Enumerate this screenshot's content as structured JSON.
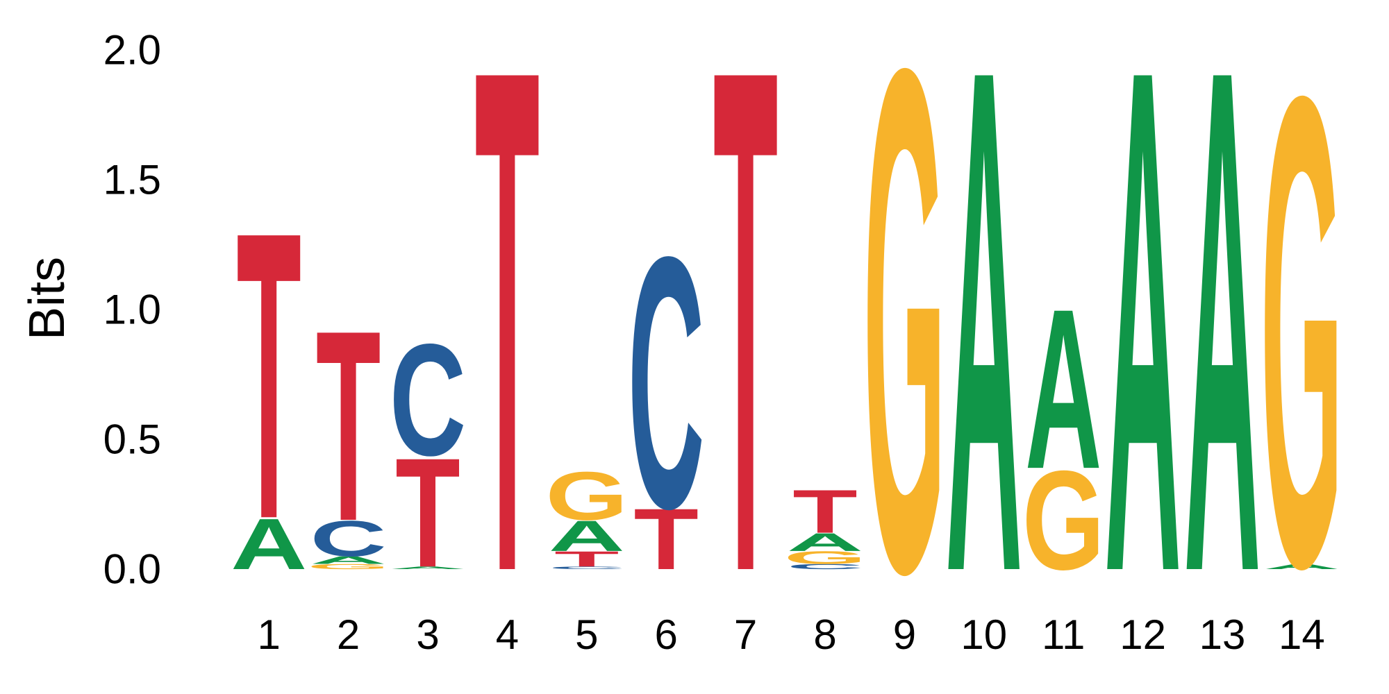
{
  "colors": {
    "A": "#109648",
    "C": "#255C99",
    "G": "#F7B32B",
    "T": "#D62839"
  },
  "chart_data": {
    "type": "sequence-logo",
    "title": "",
    "xlabel": "",
    "ylabel": "Bits",
    "ylim": [
      0,
      2
    ],
    "y_ticks": [
      "0.0",
      "0.5",
      "1.0",
      "1.5",
      "2.0"
    ],
    "y_tick_values": [
      0,
      0.5,
      1.0,
      1.5,
      2.0
    ],
    "grid": false,
    "legend": "none",
    "categories": [
      "1",
      "2",
      "3",
      "4",
      "5",
      "6",
      "7",
      "8",
      "9",
      "10",
      "11",
      "12",
      "13",
      "14"
    ],
    "positions": [
      {
        "position": "1",
        "stack": [
          {
            "base": "A",
            "bits": 0.2
          },
          {
            "base": "T",
            "bits": 1.13
          }
        ]
      },
      {
        "position": "2",
        "stack": [
          {
            "base": "G",
            "bits": 0.02
          },
          {
            "base": "A",
            "bits": 0.03
          },
          {
            "base": "C",
            "bits": 0.14
          },
          {
            "base": "T",
            "bits": 0.75
          }
        ]
      },
      {
        "position": "3",
        "stack": [
          {
            "base": "A",
            "bits": 0.01
          },
          {
            "base": "T",
            "bits": 0.43
          },
          {
            "base": "C",
            "bits": 0.44
          }
        ]
      },
      {
        "position": "4",
        "stack": [
          {
            "base": "T",
            "bits": 1.98
          }
        ]
      },
      {
        "position": "5",
        "stack": [
          {
            "base": "C",
            "bits": 0.01
          },
          {
            "base": "T",
            "bits": 0.06
          },
          {
            "base": "A",
            "bits": 0.12
          },
          {
            "base": "G",
            "bits": 0.19
          }
        ]
      },
      {
        "position": "6",
        "stack": [
          {
            "base": "T",
            "bits": 0.24
          },
          {
            "base": "C",
            "bits": 0.99
          }
        ]
      },
      {
        "position": "7",
        "stack": [
          {
            "base": "T",
            "bits": 1.98
          }
        ]
      },
      {
        "position": "8",
        "stack": [
          {
            "base": "C",
            "bits": 0.02
          },
          {
            "base": "G",
            "bits": 0.05
          },
          {
            "base": "A",
            "bits": 0.07
          },
          {
            "base": "T",
            "bits": 0.17
          }
        ]
      },
      {
        "position": "9",
        "stack": [
          {
            "base": "G",
            "bits": 1.98
          }
        ]
      },
      {
        "position": "10",
        "stack": [
          {
            "base": "A",
            "bits": 1.98
          }
        ]
      },
      {
        "position": "11",
        "stack": [
          {
            "base": "G",
            "bits": 0.39
          },
          {
            "base": "A",
            "bits": 0.63
          }
        ]
      },
      {
        "position": "12",
        "stack": [
          {
            "base": "A",
            "bits": 1.98
          }
        ]
      },
      {
        "position": "13",
        "stack": [
          {
            "base": "A",
            "bits": 1.98
          }
        ]
      },
      {
        "position": "14",
        "stack": [
          {
            "base": "A",
            "bits": 0.02
          },
          {
            "base": "G",
            "bits": 1.85
          }
        ]
      }
    ]
  }
}
